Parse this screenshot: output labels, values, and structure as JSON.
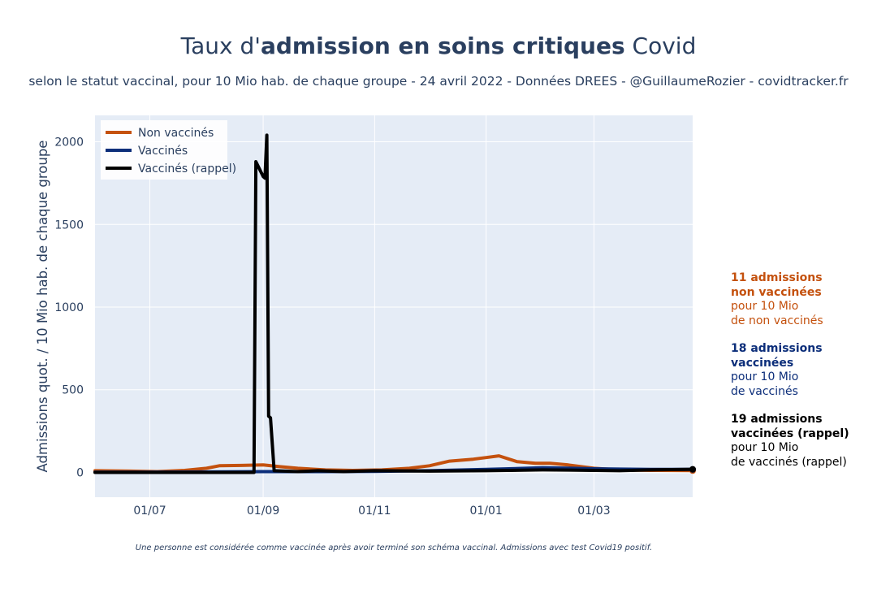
{
  "title": {
    "pre": "Taux d'",
    "bold": "admission en soins critiques",
    "post": " Covid"
  },
  "subtitle": "selon le statut vaccinal, pour 10 Mio hab. de chaque groupe - 24 avril 2022 - Données DREES - @GuillaumeRozier - covidtracker.fr",
  "footnote": "Une personne est considérée comme vaccinée après avoir terminé son schéma vaccinal. Admissions avec test Covid19 positif.",
  "annotations": [
    {
      "bold1": "11 admissions",
      "bold2": "non vaccinées",
      "line3": "pour 10 Mio",
      "line4": "de non vaccinés",
      "color": "#c4510e"
    },
    {
      "bold1": "18 admissions",
      "bold2": "vaccinées",
      "line3": "pour 10 Mio",
      "line4": "de vaccinés",
      "color": "#0c2e7a"
    },
    {
      "bold1": "19 admissions",
      "bold2": "vaccinées (rappel)",
      "line3": "pour 10 Mio",
      "line4": "de vaccinés (rappel)",
      "color": "#000000"
    }
  ],
  "chart_data": {
    "type": "line",
    "title": "Taux d'admission en soins critiques Covid",
    "ylabel": "Admissions quot. / 10 Mio hab. de chaque groupe",
    "xlabel": "",
    "xlim": [
      "2021-06-01",
      "2022-04-24"
    ],
    "ylim": [
      -150,
      2160
    ],
    "yticks": [
      0,
      500,
      1000,
      1500,
      2000
    ],
    "xticks": [
      {
        "date": "2021-07-01",
        "label": "01/07"
      },
      {
        "date": "2021-09-01",
        "label": "01/09"
      },
      {
        "date": "2021-11-01",
        "label": "01/11"
      },
      {
        "date": "2022-01-01",
        "label": "01/01"
      },
      {
        "date": "2022-03-01",
        "label": "01/03"
      }
    ],
    "legend_position": "top-left",
    "grid": true,
    "series": [
      {
        "name": "Non vaccinés",
        "color": "#c4510e",
        "points": [
          [
            "2021-06-01",
            10
          ],
          [
            "2021-06-20",
            8
          ],
          [
            "2021-07-05",
            5
          ],
          [
            "2021-07-20",
            12
          ],
          [
            "2021-08-01",
            25
          ],
          [
            "2021-08-08",
            40
          ],
          [
            "2021-08-20",
            42
          ],
          [
            "2021-09-01",
            45
          ],
          [
            "2021-09-10",
            35
          ],
          [
            "2021-09-20",
            25
          ],
          [
            "2021-10-05",
            15
          ],
          [
            "2021-10-20",
            12
          ],
          [
            "2021-11-05",
            15
          ],
          [
            "2021-11-20",
            25
          ],
          [
            "2021-12-01",
            40
          ],
          [
            "2021-12-12",
            68
          ],
          [
            "2021-12-25",
            80
          ],
          [
            "2022-01-01",
            90
          ],
          [
            "2022-01-08",
            100
          ],
          [
            "2022-01-18",
            65
          ],
          [
            "2022-01-28",
            55
          ],
          [
            "2022-02-05",
            55
          ],
          [
            "2022-02-15",
            45
          ],
          [
            "2022-03-01",
            25
          ],
          [
            "2022-03-15",
            15
          ],
          [
            "2022-04-01",
            12
          ],
          [
            "2022-04-24",
            11
          ]
        ]
      },
      {
        "name": "Vaccinés",
        "color": "#0c2e7a",
        "points": [
          [
            "2021-06-01",
            2
          ],
          [
            "2021-07-01",
            2
          ],
          [
            "2021-08-01",
            3
          ],
          [
            "2021-09-01",
            5
          ],
          [
            "2021-10-01",
            5
          ],
          [
            "2021-11-01",
            6
          ],
          [
            "2021-12-01",
            10
          ],
          [
            "2022-01-01",
            18
          ],
          [
            "2022-02-01",
            28
          ],
          [
            "2022-02-15",
            26
          ],
          [
            "2022-03-01",
            22
          ],
          [
            "2022-04-01",
            18
          ],
          [
            "2022-04-24",
            18
          ]
        ]
      },
      {
        "name": "Vaccinés (rappel)",
        "color": "#000000",
        "points": [
          [
            "2021-06-01",
            0
          ],
          [
            "2021-08-27",
            0
          ],
          [
            "2021-08-28",
            1880
          ],
          [
            "2021-09-01",
            1790
          ],
          [
            "2021-09-02",
            1780
          ],
          [
            "2021-09-03",
            2040
          ],
          [
            "2021-09-04",
            340
          ],
          [
            "2021-09-05",
            330
          ],
          [
            "2021-09-07",
            10
          ],
          [
            "2021-09-20",
            5
          ],
          [
            "2021-10-01",
            10
          ],
          [
            "2021-10-15",
            5
          ],
          [
            "2021-11-01",
            10
          ],
          [
            "2021-12-01",
            8
          ],
          [
            "2022-01-01",
            10
          ],
          [
            "2022-02-01",
            15
          ],
          [
            "2022-02-15",
            14
          ],
          [
            "2022-03-01",
            12
          ],
          [
            "2022-03-15",
            10
          ],
          [
            "2022-04-01",
            15
          ],
          [
            "2022-04-24",
            19
          ]
        ]
      }
    ]
  }
}
